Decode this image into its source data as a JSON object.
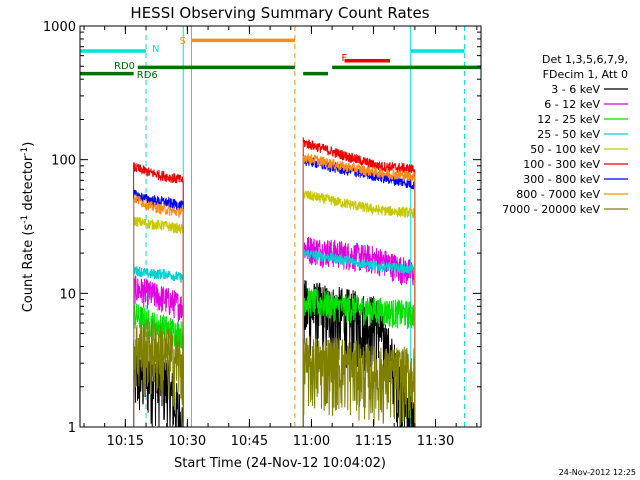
{
  "chart_data": {
    "type": "line",
    "title": "HESSI Observing Summary Count Rates",
    "xlabel": "Start Time (24-Nov-12 10:04:02)",
    "ylabel_main": "Count Rate (s",
    "ylabel_sup1": "-1",
    "ylabel_mid": " detector",
    "ylabel_sup2": "-1",
    "ylabel_end": ")",
    "y_scale": "log",
    "ylim": [
      1,
      1000
    ],
    "xlim": [
      "10:04:02",
      "11:41:00"
    ],
    "x_ticks": [
      "10:15",
      "10:30",
      "10:45",
      "11:00",
      "11:15",
      "11:30"
    ],
    "y_ticks": [
      "1",
      "10",
      "100",
      "1000"
    ],
    "legend_header": [
      "Det 1,3,5,6,7,9,",
      "FDecim 1, Att 0"
    ],
    "legend_position": "right",
    "timestamp": "24-Nov-2012 12:25",
    "colors": {
      "night": "#00e0e0",
      "saa": "#ff8c1a",
      "decim": "#007000",
      "flare": "#ee0000"
    },
    "flag_labels": {
      "N": "N",
      "S": "S",
      "F": "F",
      "RD0": "RD0",
      "RD6": "RD6"
    },
    "flag_bars": [
      {
        "flag": "night",
        "start": "10:04:02",
        "end": "10:20:00",
        "level": 650
      },
      {
        "flag": "night",
        "start": "11:24:00",
        "end": "11:37:00",
        "level": 650
      },
      {
        "flag": "saa",
        "start": "10:31:00",
        "end": "10:56:00",
        "level": 780
      },
      {
        "flag": "flare",
        "start": "11:08:00",
        "end": "11:19:00",
        "level": 550
      },
      {
        "flag": "decim_rd0",
        "start": "10:18:00",
        "end": "10:56:00",
        "level": 490
      },
      {
        "flag": "decim_rd0",
        "start": "10:58:00",
        "end": "11:04:00",
        "level": 440
      },
      {
        "flag": "decim_rd0",
        "start": "11:05:00",
        "end": "11:41:00",
        "level": 490
      },
      {
        "flag": "decim_rd6",
        "start": "10:04:02",
        "end": "10:17:00",
        "level": 440
      }
    ],
    "vlines": [
      {
        "time": "10:04:02",
        "kind": "solid",
        "color": "night"
      },
      {
        "time": "10:20:00",
        "kind": "dashed",
        "color": "night"
      },
      {
        "time": "10:29:00",
        "kind": "solid",
        "color": "night"
      },
      {
        "time": "10:31:00",
        "kind": "solid",
        "color": "saa"
      },
      {
        "time": "10:56:00",
        "kind": "dashed",
        "color": "saa"
      },
      {
        "time": "11:24:00",
        "kind": "solid",
        "color": "night"
      },
      {
        "time": "11:37:00",
        "kind": "dashed",
        "color": "night"
      }
    ],
    "series": [
      {
        "name": "3 - 6 keV",
        "color": "#000000",
        "seg1": [
          2.5,
          2.5,
          2.2,
          1.0
        ],
        "seg2": [
          8.0,
          7.0,
          6.0,
          1.0
        ]
      },
      {
        "name": "6 - 12 keV",
        "color": "#e000e0",
        "seg1": [
          11,
          10,
          9,
          8
        ],
        "seg2": [
          22,
          20,
          18,
          14
        ]
      },
      {
        "name": "12 - 25 keV",
        "color": "#00e000",
        "seg1": [
          7,
          6,
          5.5,
          5
        ],
        "seg2": [
          9,
          8,
          7.5,
          7
        ]
      },
      {
        "name": "25 - 50 keV",
        "color": "#00d0d0",
        "seg1": [
          15,
          14,
          14,
          13
        ],
        "seg2": [
          20,
          18,
          16,
          15
        ]
      },
      {
        "name": "50 - 100 keV",
        "color": "#c8c800",
        "seg1": [
          35,
          33,
          32,
          30
        ],
        "seg2": [
          55,
          48,
          42,
          40
        ]
      },
      {
        "name": "100 - 300 keV",
        "color": "#ee0000",
        "seg1": [
          88,
          80,
          75,
          70
        ],
        "seg2": [
          135,
          110,
          90,
          85
        ]
      },
      {
        "name": "300 - 800 keV",
        "color": "#0000ee",
        "seg1": [
          55,
          50,
          48,
          45
        ],
        "seg2": [
          100,
          85,
          75,
          65
        ]
      },
      {
        "name": "800 - 7000 keV",
        "color": "#ff8c1a",
        "seg1": [
          52,
          45,
          42,
          40
        ],
        "seg2": [
          105,
          90,
          80,
          75
        ]
      },
      {
        "name": "7000 - 20000 keV",
        "color": "#808000",
        "seg1": [
          4,
          4,
          3.5,
          3
        ],
        "seg2": [
          3,
          3,
          2.5,
          2.5
        ]
      }
    ]
  }
}
